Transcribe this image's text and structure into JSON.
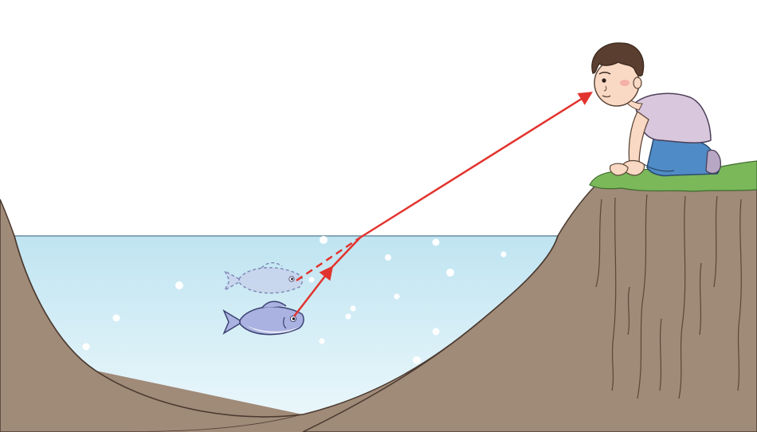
{
  "scene": {
    "subject": "refraction-of-light-fish-in-water",
    "colors": {
      "sky": "#ffffff",
      "water_top": "#bfe4f1",
      "water_bottom": "#e6f5fa",
      "earth": "#a08a78",
      "earth_dark": "#8c7664",
      "grass": "#7ab85a",
      "light_ray": "#e2342e",
      "fish_body": "#a9b2e0",
      "fish_belly": "#e6e9f8",
      "shirt": "#d9c7dd",
      "jeans": "#4f8bc6",
      "hair": "#5a3e2f",
      "skin": "#f9d9c4"
    },
    "icons": [
      "real-fish-icon",
      "apparent-fish-icon",
      "observer-boy-icon"
    ]
  }
}
